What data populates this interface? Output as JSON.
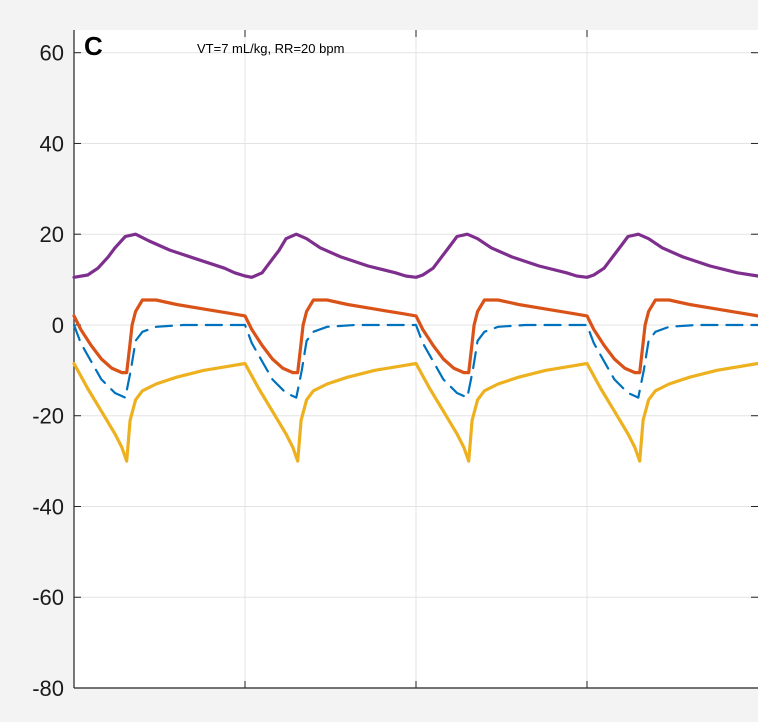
{
  "chart_data": {
    "type": "line",
    "panel_label": "C",
    "annotation": "VT=7 mL/kg, RR=20 bpm",
    "xlabel": "",
    "ylabel": "",
    "xlim": [
      0,
      1
    ],
    "ylim": [
      -80,
      65
    ],
    "yticks": [
      {
        "value": 60,
        "label": "60"
      },
      {
        "value": 40,
        "label": "40"
      },
      {
        "value": 20,
        "label": "20"
      },
      {
        "value": 0,
        "label": "0"
      },
      {
        "value": -20,
        "label": "-20"
      },
      {
        "value": -40,
        "label": "-40"
      },
      {
        "value": -60,
        "label": "-60"
      },
      {
        "value": -80,
        "label": "-80"
      }
    ],
    "xgrid": [
      0.25,
      0.5,
      0.75
    ],
    "grid": true,
    "background": "#f3f3f3",
    "plot_background": "#ffffff",
    "series": [
      {
        "color": "#7e2f8e",
        "dash": false,
        "x": [
          0,
          0.02,
          0.035,
          0.05,
          0.06,
          0.075,
          0.09,
          0.11,
          0.14,
          0.18,
          0.22,
          0.235,
          0.25,
          0.26,
          0.275,
          0.285,
          0.3,
          0.31,
          0.325,
          0.34,
          0.36,
          0.39,
          0.43,
          0.47,
          0.485,
          0.5,
          0.51,
          0.525,
          0.535,
          0.55,
          0.56,
          0.575,
          0.59,
          0.61,
          0.64,
          0.68,
          0.72,
          0.735,
          0.75,
          0.76,
          0.775,
          0.785,
          0.8,
          0.81,
          0.825,
          0.84,
          0.86,
          0.89,
          0.93,
          0.97,
          1.0
        ],
        "y": [
          10.5,
          11,
          12.5,
          15,
          17,
          19.5,
          20,
          18.5,
          16.5,
          14.5,
          12.5,
          11.5,
          10.8,
          10.5,
          11.5,
          13.5,
          16.5,
          19,
          20,
          19,
          17,
          15,
          13,
          11.5,
          10.8,
          10.5,
          11,
          12.5,
          14.5,
          17.5,
          19.5,
          20,
          19,
          17,
          15,
          13,
          11.5,
          10.8,
          10.5,
          11,
          12.5,
          14.5,
          17.5,
          19.5,
          20,
          19,
          17,
          15,
          13,
          11.5,
          10.8
        ]
      },
      {
        "color": "#d95319",
        "dash": false,
        "x": [
          0,
          0.01,
          0.025,
          0.04,
          0.055,
          0.07,
          0.077,
          0.082,
          0.085,
          0.09,
          0.1,
          0.12,
          0.15,
          0.19,
          0.23,
          0.25,
          0.26,
          0.275,
          0.29,
          0.305,
          0.32,
          0.327,
          0.332,
          0.335,
          0.34,
          0.35,
          0.37,
          0.4,
          0.44,
          0.48,
          0.5,
          0.51,
          0.525,
          0.54,
          0.555,
          0.57,
          0.577,
          0.582,
          0.585,
          0.59,
          0.6,
          0.62,
          0.65,
          0.69,
          0.73,
          0.75,
          0.76,
          0.775,
          0.79,
          0.805,
          0.82,
          0.827,
          0.832,
          0.835,
          0.84,
          0.85,
          0.87,
          0.9,
          0.94,
          1.0
        ],
        "y": [
          2,
          -1,
          -4.5,
          -7.5,
          -9.5,
          -10.5,
          -10.5,
          -4,
          0,
          3,
          5.5,
          5.5,
          4.5,
          3.5,
          2.5,
          2,
          -1,
          -4.5,
          -7.5,
          -9.5,
          -10.5,
          -10.5,
          -4,
          0,
          3,
          5.5,
          5.5,
          4.5,
          3.5,
          2.5,
          2,
          -1,
          -4.5,
          -7.5,
          -9.5,
          -10.5,
          -10.5,
          -4,
          0,
          3,
          5.5,
          5.5,
          4.5,
          3.5,
          2.5,
          2,
          -1,
          -4.5,
          -7.5,
          -9.5,
          -10.5,
          -10.5,
          -4,
          0,
          3,
          5.5,
          5.5,
          4.5,
          3.5,
          2
        ]
      },
      {
        "color": "#0072bd",
        "dash": true,
        "x": [
          0,
          0.01,
          0.025,
          0.04,
          0.06,
          0.075,
          0.083,
          0.09,
          0.1,
          0.12,
          0.16,
          0.2,
          0.25,
          0.26,
          0.275,
          0.29,
          0.31,
          0.325,
          0.333,
          0.34,
          0.35,
          0.37,
          0.41,
          0.45,
          0.5,
          0.51,
          0.525,
          0.54,
          0.56,
          0.575,
          0.583,
          0.59,
          0.6,
          0.62,
          0.66,
          0.7,
          0.75,
          0.76,
          0.775,
          0.79,
          0.81,
          0.825,
          0.833,
          0.84,
          0.85,
          0.87,
          0.91,
          0.95,
          1.0
        ],
        "y": [
          0,
          -4,
          -8,
          -12,
          -15,
          -16,
          -10,
          -3.5,
          -1.5,
          -0.4,
          0,
          0,
          0,
          -4,
          -8,
          -12,
          -15,
          -16,
          -10,
          -3.5,
          -1.5,
          -0.4,
          0,
          0,
          0,
          -4,
          -8,
          -12,
          -15,
          -16,
          -10,
          -3.5,
          -1.5,
          -0.4,
          0,
          0,
          0,
          -4,
          -8,
          -12,
          -15,
          -16,
          -10,
          -3.5,
          -1.5,
          -0.4,
          0,
          0,
          0
        ]
      },
      {
        "color": "#edb120",
        "dash": false,
        "x": [
          0,
          0.02,
          0.04,
          0.06,
          0.07,
          0.077,
          0.082,
          0.09,
          0.1,
          0.12,
          0.15,
          0.19,
          0.23,
          0.25,
          0.27,
          0.29,
          0.31,
          0.32,
          0.327,
          0.332,
          0.34,
          0.35,
          0.37,
          0.4,
          0.44,
          0.48,
          0.5,
          0.52,
          0.54,
          0.56,
          0.57,
          0.577,
          0.582,
          0.59,
          0.6,
          0.62,
          0.65,
          0.69,
          0.73,
          0.75,
          0.77,
          0.79,
          0.81,
          0.82,
          0.827,
          0.832,
          0.84,
          0.85,
          0.87,
          0.9,
          0.94,
          1.0
        ],
        "y": [
          -8.5,
          -14,
          -19,
          -24,
          -27,
          -30,
          -21,
          -16.5,
          -14.5,
          -13,
          -11.5,
          -10,
          -9,
          -8.5,
          -14,
          -19,
          -24,
          -27,
          -30,
          -21,
          -16.5,
          -14.5,
          -13,
          -11.5,
          -10,
          -9,
          -8.5,
          -14,
          -19,
          -24,
          -27,
          -30,
          -21,
          -16.5,
          -14.5,
          -13,
          -11.5,
          -10,
          -9,
          -8.5,
          -14,
          -19,
          -24,
          -27,
          -30,
          -21,
          -16.5,
          -14.5,
          -13,
          -11.5,
          -10,
          -8.5
        ]
      }
    ]
  }
}
